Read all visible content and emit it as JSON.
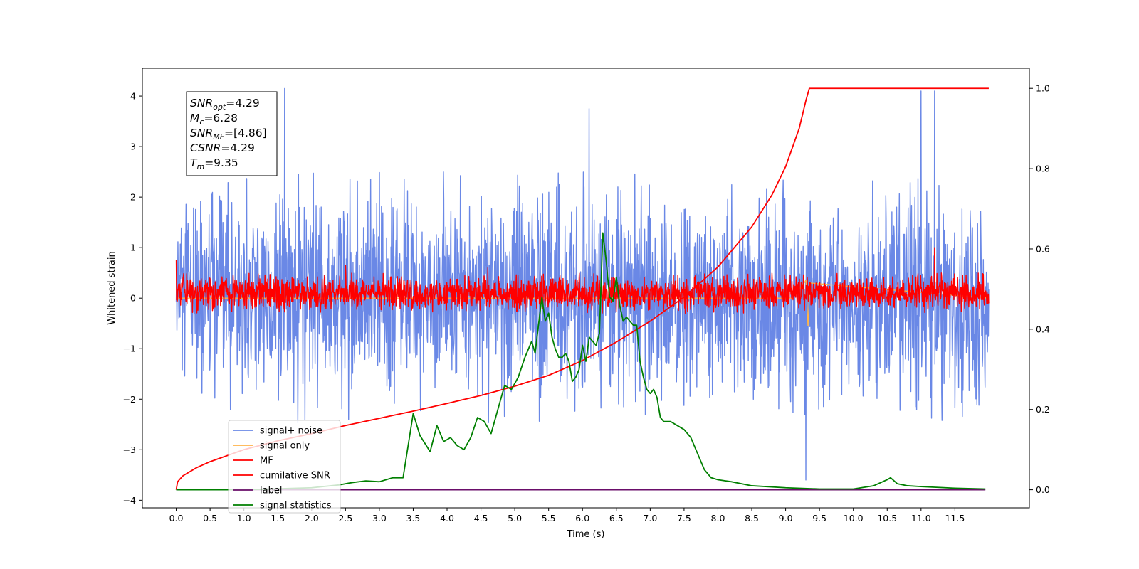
{
  "chart_data": {
    "type": "line",
    "title": "",
    "xlabel": "Time (s)",
    "ylabel": "Whitened strain",
    "xlim": [
      -0.5,
      12.6
    ],
    "ylim": [
      -4.15,
      4.55
    ],
    "y2lim": [
      -0.045,
      1.05
    ],
    "x_ticks": [
      0.0,
      0.5,
      1.0,
      1.5,
      2.0,
      2.5,
      3.0,
      3.5,
      4.0,
      4.5,
      5.0,
      5.5,
      6.0,
      6.5,
      7.0,
      7.5,
      8.0,
      8.5,
      9.0,
      9.5,
      10.0,
      10.5,
      11.0,
      11.5
    ],
    "x_tick_labels": [
      "0.0",
      "0.5",
      "1.0",
      "1.5",
      "2.0",
      "2.5",
      "3.0",
      "3.5",
      "4.0",
      "4.5",
      "5.0",
      "5.5",
      "6.0",
      "6.5",
      "7.0",
      "7.5",
      "8.0",
      "8.5",
      "9.0",
      "9.5",
      "10.0",
      "10.5",
      "11.0",
      "11.5"
    ],
    "y_ticks": [
      -4,
      -3,
      -2,
      -1,
      0,
      1,
      2,
      3,
      4
    ],
    "y_tick_labels": [
      "−4",
      "−3",
      "−2",
      "−1",
      "0",
      "1",
      "2",
      "3",
      "4"
    ],
    "y2_ticks": [
      0.0,
      0.2,
      0.4,
      0.6,
      0.8,
      1.0
    ],
    "y2_tick_labels": [
      "0.0",
      "0.2",
      "0.4",
      "0.6",
      "0.8",
      "1.0"
    ],
    "grid": false,
    "legend_position": "lower-left",
    "series": [
      {
        "name": "signal+ noise",
        "axis": "left",
        "color": "#6a88e6",
        "x_range": [
          0,
          12
        ],
        "noise_envelope": [
          -2.5,
          2.5
        ],
        "notable_peaks": [
          [
            1.6,
            4.15
          ],
          [
            11.0,
            4.1
          ],
          [
            11.2,
            4.1
          ],
          [
            6.1,
            3.75
          ],
          [
            9.3,
            -3.6
          ]
        ]
      },
      {
        "name": "signal only",
        "axis": "left",
        "color": "#ffb347",
        "x": [
          0,
          9.1,
          9.3,
          9.33,
          9.36,
          12
        ],
        "y": [
          0,
          0,
          0.35,
          -0.55,
          0.3,
          0
        ]
      },
      {
        "name": "MF",
        "axis": "left",
        "color": "#ff0000",
        "x_range": [
          0,
          12
        ],
        "noise_envelope": [
          -0.3,
          0.5
        ],
        "notable_peaks": [
          [
            11.2,
            1.0
          ],
          [
            0.0,
            0.75
          ],
          [
            2.5,
            0.65
          ],
          [
            4.6,
            0.6
          ]
        ]
      },
      {
        "name": "cumilative SNR",
        "axis": "right",
        "color": "#ff0000",
        "x": [
          0.0,
          0.02,
          0.1,
          0.3,
          0.5,
          1.0,
          1.5,
          2.0,
          2.5,
          3.0,
          3.5,
          4.0,
          4.5,
          5.0,
          5.5,
          6.0,
          6.5,
          7.0,
          7.5,
          8.0,
          8.5,
          8.8,
          9.0,
          9.2,
          9.3,
          9.35,
          9.5,
          10.0,
          11.0,
          12.0
        ],
        "y": [
          0.0,
          0.02,
          0.035,
          0.055,
          0.07,
          0.1,
          0.122,
          0.14,
          0.16,
          0.178,
          0.196,
          0.215,
          0.235,
          0.258,
          0.285,
          0.322,
          0.368,
          0.42,
          0.48,
          0.555,
          0.655,
          0.735,
          0.805,
          0.9,
          0.97,
          1.0,
          1.0,
          1.0,
          1.0,
          1.0
        ]
      },
      {
        "name": "label",
        "axis": "right",
        "color": "#6a0d6a",
        "x": [
          0,
          11.95
        ],
        "y": [
          0,
          0
        ]
      },
      {
        "name": "signal statistics",
        "axis": "right",
        "color": "#007f00",
        "x": [
          0.0,
          1.0,
          2.0,
          2.4,
          2.6,
          2.8,
          3.0,
          3.2,
          3.35,
          3.5,
          3.6,
          3.75,
          3.85,
          3.95,
          4.05,
          4.15,
          4.25,
          4.35,
          4.45,
          4.55,
          4.65,
          4.75,
          4.85,
          4.95,
          5.05,
          5.15,
          5.25,
          5.3,
          5.35,
          5.4,
          5.45,
          5.5,
          5.55,
          5.6,
          5.65,
          5.7,
          5.75,
          5.8,
          5.85,
          5.9,
          5.95,
          6.0,
          6.05,
          6.1,
          6.15,
          6.2,
          6.25,
          6.3,
          6.35,
          6.4,
          6.45,
          6.5,
          6.55,
          6.6,
          6.65,
          6.7,
          6.75,
          6.8,
          6.85,
          6.9,
          6.95,
          7.0,
          7.05,
          7.1,
          7.15,
          7.2,
          7.3,
          7.4,
          7.5,
          7.6,
          7.7,
          7.8,
          7.9,
          8.0,
          8.2,
          8.5,
          9.0,
          9.5,
          10.0,
          10.3,
          10.5,
          10.55,
          10.65,
          10.8,
          11.0,
          11.5,
          11.95
        ],
        "y": [
          0.0,
          0.0,
          0.005,
          0.012,
          0.018,
          0.022,
          0.02,
          0.03,
          0.03,
          0.19,
          0.135,
          0.095,
          0.16,
          0.12,
          0.13,
          0.11,
          0.1,
          0.13,
          0.18,
          0.17,
          0.14,
          0.2,
          0.26,
          0.25,
          0.28,
          0.33,
          0.37,
          0.34,
          0.41,
          0.48,
          0.42,
          0.44,
          0.38,
          0.35,
          0.33,
          0.33,
          0.34,
          0.32,
          0.27,
          0.28,
          0.3,
          0.36,
          0.32,
          0.38,
          0.37,
          0.36,
          0.39,
          0.64,
          0.57,
          0.48,
          0.47,
          0.53,
          0.46,
          0.42,
          0.43,
          0.42,
          0.41,
          0.41,
          0.32,
          0.28,
          0.25,
          0.24,
          0.25,
          0.23,
          0.18,
          0.17,
          0.17,
          0.16,
          0.15,
          0.13,
          0.09,
          0.05,
          0.03,
          0.025,
          0.02,
          0.01,
          0.005,
          0.002,
          0.002,
          0.01,
          0.025,
          0.03,
          0.015,
          0.01,
          0.008,
          0.004,
          0.002
        ]
      }
    ],
    "annotation": [
      {
        "base": "SNR",
        "sub": "opt",
        "value": "=4.29"
      },
      {
        "base": "M",
        "sub": "c",
        "value": "=6.28"
      },
      {
        "base": "SNR",
        "sub": "MF",
        "value": "=[4.86]"
      },
      {
        "base": "CSNR",
        "sub": "",
        "value": "=4.29"
      },
      {
        "base": "T",
        "sub": "m",
        "value": "=9.35"
      }
    ]
  }
}
